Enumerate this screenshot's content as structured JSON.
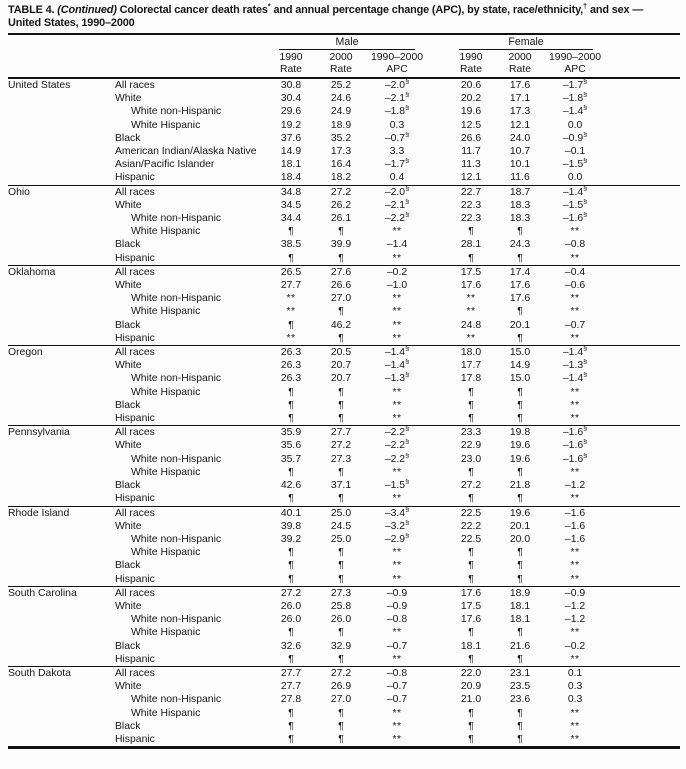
{
  "title": {
    "prefix": "TABLE 4. ",
    "continued": "(Continued)",
    "part1": " Colorectal cancer death rates",
    "footnote1": "*",
    "part2": " and annual percentage change (APC), by state, race/ethnicity,",
    "footnote2": "†",
    "part3": " and sex — United States, 1990–2000"
  },
  "header": {
    "male": "Male",
    "female": "Female",
    "columns": [
      "1990\nRate",
      "2000\nRate",
      "1990–2000\nAPC",
      "1990\nRate",
      "2000\nRate",
      "1990–2000\nAPC"
    ]
  },
  "symbols": {
    "suppressed": "¶",
    "not_available": "**",
    "statistically_significant": "§"
  },
  "states": [
    {
      "name": "United States",
      "rows": [
        {
          "label": "All races",
          "indent": false,
          "values": [
            "30.8",
            "25.2",
            "–2.0§",
            "20.6",
            "17.6",
            "–1.7§"
          ]
        },
        {
          "label": "White",
          "indent": false,
          "values": [
            "30.4",
            "24.6",
            "–2.1§",
            "20.2",
            "17.1",
            "–1.8§"
          ]
        },
        {
          "label": "White non-Hispanic",
          "indent": true,
          "values": [
            "29.6",
            "24.9",
            "–1.8§",
            "19.6",
            "17.3",
            "–1.4§"
          ]
        },
        {
          "label": "White Hispanic",
          "indent": true,
          "values": [
            "19.2",
            "18.9",
            "0.3",
            "12.5",
            "12.1",
            "0.0"
          ]
        },
        {
          "label": "Black",
          "indent": false,
          "values": [
            "37.6",
            "35.2",
            "–0.7§",
            "26.6",
            "24.0",
            "–0.9§"
          ]
        },
        {
          "label": "American Indian/Alaska Native",
          "indent": false,
          "values": [
            "14.9",
            "17.3",
            "3.3",
            "11.7",
            "10.7",
            "–0.1"
          ]
        },
        {
          "label": "Asian/Pacific Islander",
          "indent": false,
          "values": [
            "18.1",
            "16.4",
            "–1.7§",
            "11.3",
            "10.1",
            "–1.5§"
          ]
        },
        {
          "label": "Hispanic",
          "indent": false,
          "values": [
            "18.4",
            "18.2",
            "0.4",
            "12.1",
            "11.6",
            "0.0"
          ]
        }
      ]
    },
    {
      "name": "Ohio",
      "rows": [
        {
          "label": "All races",
          "indent": false,
          "values": [
            "34.8",
            "27.2",
            "–2.0§",
            "22.7",
            "18.7",
            "–1.4§"
          ]
        },
        {
          "label": "White",
          "indent": false,
          "values": [
            "34.5",
            "26.2",
            "–2.1§",
            "22.3",
            "18.3",
            "–1.5§"
          ]
        },
        {
          "label": "White non-Hispanic",
          "indent": true,
          "values": [
            "34.4",
            "26.1",
            "–2.2§",
            "22.3",
            "18.3",
            "–1.6§"
          ]
        },
        {
          "label": "White Hispanic",
          "indent": true,
          "values": [
            "¶",
            "¶",
            "**",
            "¶",
            "¶",
            "**"
          ]
        },
        {
          "label": "Black",
          "indent": false,
          "values": [
            "38.5",
            "39.9",
            "–1.4",
            "28.1",
            "24.3",
            "–0.8"
          ]
        },
        {
          "label": "Hispanic",
          "indent": false,
          "values": [
            "¶",
            "¶",
            "**",
            "¶",
            "¶",
            "**"
          ]
        }
      ]
    },
    {
      "name": "Oklahoma",
      "rows": [
        {
          "label": "All races",
          "indent": false,
          "values": [
            "26.5",
            "27.6",
            "–0.2",
            "17.5",
            "17.4",
            "–0.4"
          ]
        },
        {
          "label": "White",
          "indent": false,
          "values": [
            "27.7",
            "26.6",
            "–1.0",
            "17.6",
            "17.6",
            "–0.6"
          ]
        },
        {
          "label": "White non-Hispanic",
          "indent": true,
          "values": [
            "**",
            "27.0",
            "**",
            "**",
            "17.6",
            "**"
          ]
        },
        {
          "label": "White Hispanic",
          "indent": true,
          "values": [
            "**",
            "¶",
            "**",
            "**",
            "¶",
            "**"
          ]
        },
        {
          "label": "Black",
          "indent": false,
          "values": [
            "¶",
            "46.2",
            "**",
            "24.8",
            "20.1",
            "–0.7"
          ]
        },
        {
          "label": "Hispanic",
          "indent": false,
          "values": [
            "**",
            "¶",
            "**",
            "**",
            "¶",
            "**"
          ]
        }
      ]
    },
    {
      "name": "Oregon",
      "rows": [
        {
          "label": "All races",
          "indent": false,
          "values": [
            "26.3",
            "20.5",
            "–1.4§",
            "18.0",
            "15.0",
            "–1.4§"
          ]
        },
        {
          "label": "White",
          "indent": false,
          "values": [
            "26.3",
            "20.7",
            "–1.4§",
            "17.7",
            "14.9",
            "–1.3§"
          ]
        },
        {
          "label": "White non-Hispanic",
          "indent": true,
          "values": [
            "26.3",
            "20.7",
            "–1.3§",
            "17.8",
            "15.0",
            "–1.4§"
          ]
        },
        {
          "label": "White Hispanic",
          "indent": true,
          "values": [
            "¶",
            "¶",
            "**",
            "¶",
            "¶",
            "**"
          ]
        },
        {
          "label": "Black",
          "indent": false,
          "values": [
            "¶",
            "¶",
            "**",
            "¶",
            "¶",
            "**"
          ]
        },
        {
          "label": "Hispanic",
          "indent": false,
          "values": [
            "¶",
            "¶",
            "**",
            "¶",
            "¶",
            "**"
          ]
        }
      ]
    },
    {
      "name": "Pennsylvania",
      "rows": [
        {
          "label": "All races",
          "indent": false,
          "values": [
            "35.9",
            "27.7",
            "–2.2§",
            "23.3",
            "19.8",
            "–1.6§"
          ]
        },
        {
          "label": "White",
          "indent": false,
          "values": [
            "35.6",
            "27.2",
            "–2.2§",
            "22.9",
            "19.6",
            "–1.6§"
          ]
        },
        {
          "label": "White non-Hispanic",
          "indent": true,
          "values": [
            "35.7",
            "27.3",
            "–2.2§",
            "23.0",
            "19.6",
            "–1.6§"
          ]
        },
        {
          "label": "White Hispanic",
          "indent": true,
          "values": [
            "¶",
            "¶",
            "**",
            "¶",
            "¶",
            "**"
          ]
        },
        {
          "label": "Black",
          "indent": false,
          "values": [
            "42.6",
            "37.1",
            "–1.5§",
            "27.2",
            "21.8",
            "–1.2"
          ]
        },
        {
          "label": "Hispanic",
          "indent": false,
          "values": [
            "¶",
            "¶",
            "**",
            "¶",
            "¶",
            "**"
          ]
        }
      ]
    },
    {
      "name": "Rhode Island",
      "rows": [
        {
          "label": "All races",
          "indent": false,
          "values": [
            "40.1",
            "25.0",
            "–3.4§",
            "22.5",
            "19.6",
            "–1.6"
          ]
        },
        {
          "label": "White",
          "indent": false,
          "values": [
            "39.8",
            "24.5",
            "–3.2§",
            "22.2",
            "20.1",
            "–1.6"
          ]
        },
        {
          "label": "White non-Hispanic",
          "indent": true,
          "values": [
            "39.2",
            "25.0",
            "–2.9§",
            "22.5",
            "20.0",
            "–1.6"
          ]
        },
        {
          "label": "White Hispanic",
          "indent": true,
          "values": [
            "¶",
            "¶",
            "**",
            "¶",
            "¶",
            "**"
          ]
        },
        {
          "label": "Black",
          "indent": false,
          "values": [
            "¶",
            "¶",
            "**",
            "¶",
            "¶",
            "**"
          ]
        },
        {
          "label": "Hispanic",
          "indent": false,
          "values": [
            "¶",
            "¶",
            "**",
            "¶",
            "¶",
            "**"
          ]
        }
      ]
    },
    {
      "name": "South Carolina",
      "rows": [
        {
          "label": "All races",
          "indent": false,
          "values": [
            "27.2",
            "27.3",
            "–0.9",
            "17.6",
            "18.9",
            "–0.9"
          ]
        },
        {
          "label": "White",
          "indent": false,
          "values": [
            "26.0",
            "25.8",
            "–0.9",
            "17.5",
            "18.1",
            "–1.2"
          ]
        },
        {
          "label": "White non-Hispanic",
          "indent": true,
          "values": [
            "26.0",
            "26.0",
            "–0.8",
            "17.6",
            "18.1",
            "–1.2"
          ]
        },
        {
          "label": "White Hispanic",
          "indent": true,
          "values": [
            "¶",
            "¶",
            "**",
            "¶",
            "¶",
            "**"
          ]
        },
        {
          "label": "Black",
          "indent": false,
          "values": [
            "32.6",
            "32.9",
            "–0.7",
            "18.1",
            "21.6",
            "–0.2"
          ]
        },
        {
          "label": "Hispanic",
          "indent": false,
          "values": [
            "¶",
            "¶",
            "**",
            "¶",
            "¶",
            "**"
          ]
        }
      ]
    },
    {
      "name": "South Dakota",
      "rows": [
        {
          "label": "All races",
          "indent": false,
          "values": [
            "27.7",
            "27.2",
            "–0.8",
            "22.0",
            "23.1",
            "0.1"
          ]
        },
        {
          "label": "White",
          "indent": false,
          "values": [
            "27.7",
            "26.9",
            "–0.7",
            "20.9",
            "23.5",
            "0.3"
          ]
        },
        {
          "label": "White non-Hispanic",
          "indent": true,
          "values": [
            "27.8",
            "27.0",
            "–0.7",
            "21.0",
            "23.6",
            "0.3"
          ]
        },
        {
          "label": "White Hispanic",
          "indent": true,
          "values": [
            "¶",
            "¶",
            "**",
            "¶",
            "¶",
            "**"
          ]
        },
        {
          "label": "Black",
          "indent": false,
          "values": [
            "¶",
            "¶",
            "**",
            "¶",
            "¶",
            "**"
          ]
        },
        {
          "label": "Hispanic",
          "indent": false,
          "values": [
            "¶",
            "¶",
            "**",
            "¶",
            "¶",
            "**"
          ]
        }
      ]
    }
  ]
}
